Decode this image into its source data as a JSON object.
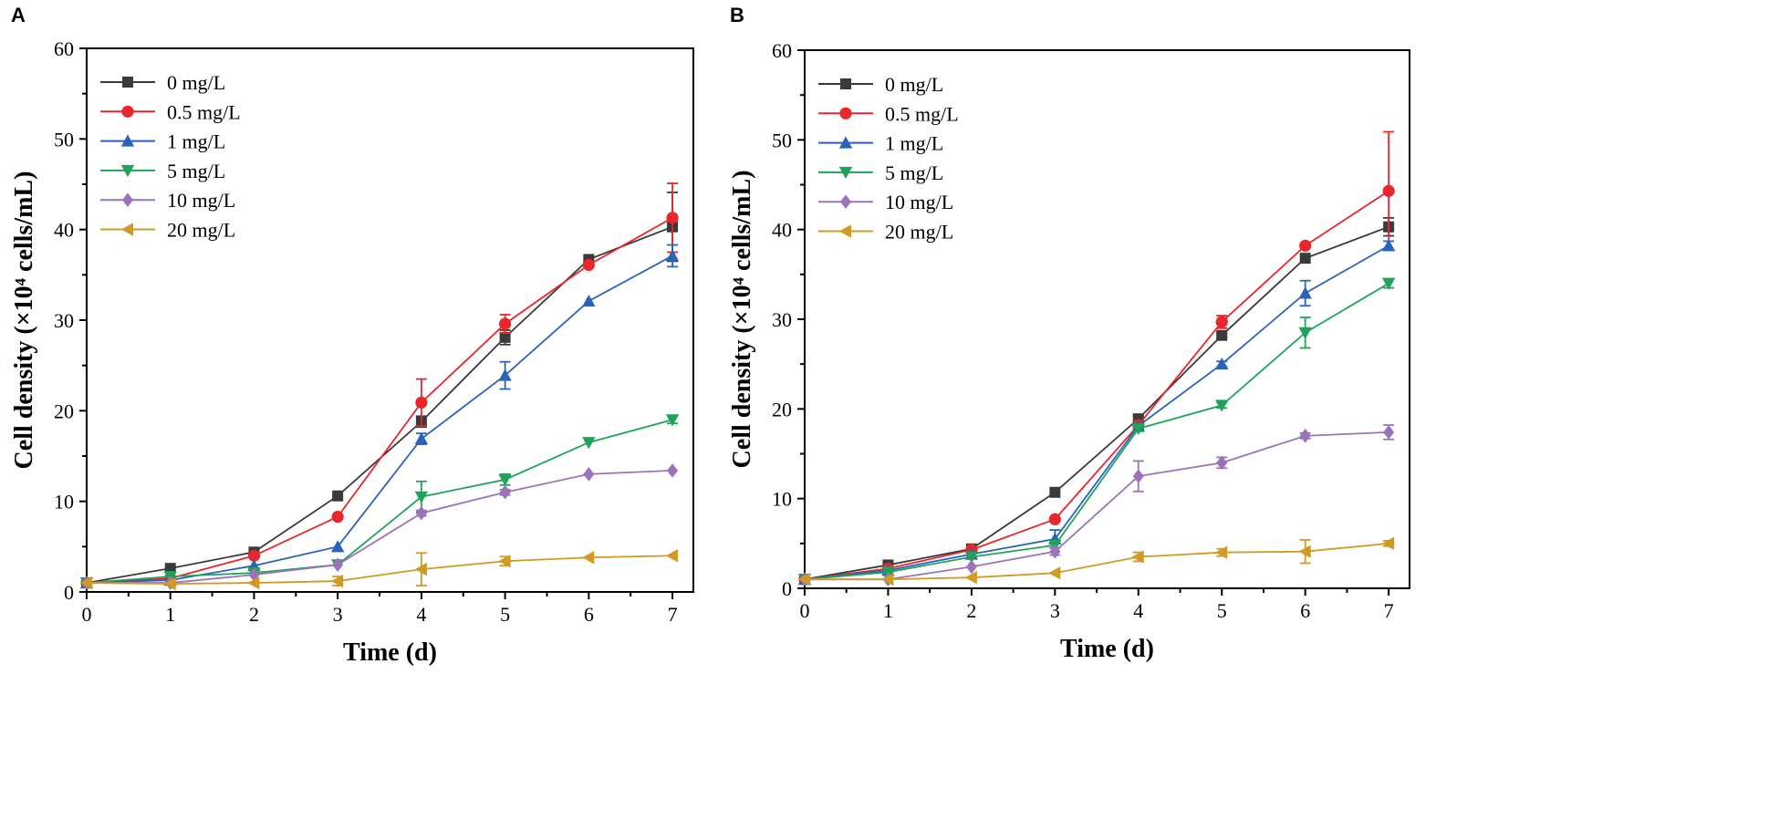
{
  "chart_data": [
    {
      "panel": "A",
      "type": "line",
      "xlabel": "Time (d)",
      "ylabel": "Cell density (×10⁴ cells/mL)",
      "xlim": [
        0,
        7.25
      ],
      "ylim": [
        0,
        60
      ],
      "xticks": [
        0,
        1,
        2,
        3,
        4,
        5,
        6,
        7
      ],
      "yticks": [
        0,
        10,
        20,
        30,
        40,
        50,
        60
      ],
      "legend": "top-left",
      "grid": false,
      "x": [
        0,
        1,
        2,
        3,
        4,
        5,
        6,
        7
      ],
      "series": [
        {
          "name": "0 mg/L",
          "color": "#3a3a3a",
          "marker": "square",
          "values": [
            1,
            2.6,
            4.4,
            10.6,
            18.8,
            28.1,
            36.7,
            40.3
          ],
          "errors": [
            0,
            0,
            0,
            0,
            0.6,
            0.8,
            0,
            3.8
          ]
        },
        {
          "name": "0.5 mg/L",
          "color": "#e8262c",
          "marker": "circle",
          "values": [
            1,
            1.5,
            4.0,
            8.3,
            20.9,
            29.6,
            36.1,
            41.3
          ],
          "errors": [
            0,
            0,
            0,
            0,
            2.6,
            1.0,
            0,
            3.8
          ]
        },
        {
          "name": "1 mg/L",
          "color": "#2a63b8",
          "marker": "triangle-up",
          "values": [
            1,
            1.3,
            2.9,
            5.0,
            16.9,
            23.9,
            32.1,
            37.1
          ],
          "errors": [
            0,
            0,
            0,
            0,
            0.6,
            1.5,
            0,
            1.2
          ]
        },
        {
          "name": "5 mg/L",
          "color": "#1fa35a",
          "marker": "triangle-down",
          "values": [
            1,
            1.7,
            2.1,
            3.0,
            10.5,
            12.4,
            16.5,
            19.0
          ],
          "errors": [
            0,
            0,
            0,
            0,
            1.7,
            0.6,
            0,
            0.4
          ]
        },
        {
          "name": "10 mg/L",
          "color": "#9a73b8",
          "marker": "diamond",
          "values": [
            1,
            1.0,
            1.9,
            3.0,
            8.7,
            11.0,
            13.0,
            13.4
          ],
          "errors": [
            0,
            0,
            0,
            0,
            0.3,
            0.3,
            0,
            0.2
          ]
        },
        {
          "name": "20 mg/L",
          "color": "#d19a24",
          "marker": "triangle-left",
          "values": [
            1,
            0.9,
            1.0,
            1.2,
            2.5,
            3.4,
            3.8,
            4.0
          ],
          "errors": [
            0,
            0,
            0,
            0.5,
            1.8,
            0.5,
            0,
            0.2
          ]
        }
      ]
    },
    {
      "panel": "B",
      "type": "line",
      "xlabel": "Time (d)",
      "ylabel": "Cell density (×10⁴ cells/mL)",
      "xlim": [
        0,
        7.25
      ],
      "ylim": [
        0,
        60
      ],
      "xticks": [
        0,
        1,
        2,
        3,
        4,
        5,
        6,
        7
      ],
      "yticks": [
        0,
        10,
        20,
        30,
        40,
        50,
        60
      ],
      "legend": "top-left",
      "grid": false,
      "x": [
        0,
        1,
        2,
        3,
        4,
        5,
        6,
        7
      ],
      "series": [
        {
          "name": "0 mg/L",
          "color": "#3a3a3a",
          "marker": "square",
          "values": [
            1,
            2.6,
            4.4,
            10.7,
            18.9,
            28.2,
            36.8,
            40.3
          ],
          "errors": [
            0,
            0,
            0,
            0,
            0.3,
            0.3,
            0,
            1.0
          ]
        },
        {
          "name": "0.5 mg/L",
          "color": "#e8262c",
          "marker": "circle",
          "values": [
            1,
            2.2,
            4.3,
            7.7,
            18.2,
            29.7,
            38.2,
            44.3
          ],
          "errors": [
            0,
            0,
            0,
            0,
            0.3,
            0.7,
            0,
            6.6
          ]
        },
        {
          "name": "1 mg/L",
          "color": "#2a63b8",
          "marker": "triangle-up",
          "values": [
            1,
            2.0,
            3.8,
            5.5,
            18.1,
            25.0,
            32.9,
            38.2
          ],
          "errors": [
            0,
            0,
            0,
            1.0,
            0.3,
            0.3,
            1.4,
            0.5
          ]
        },
        {
          "name": "5 mg/L",
          "color": "#1fa35a",
          "marker": "triangle-down",
          "values": [
            1,
            1.8,
            3.5,
            4.8,
            17.8,
            20.4,
            28.5,
            34.0
          ],
          "errors": [
            0,
            0,
            0,
            0,
            0.3,
            0.3,
            1.7,
            0.5
          ]
        },
        {
          "name": "10 mg/L",
          "color": "#9a73b8",
          "marker": "diamond",
          "values": [
            1,
            1.0,
            2.4,
            4.1,
            12.5,
            14.0,
            17.0,
            17.4
          ],
          "errors": [
            0,
            0,
            0,
            0.4,
            1.7,
            0.6,
            0.3,
            0.8
          ]
        },
        {
          "name": "20 mg/L",
          "color": "#d19a24",
          "marker": "triangle-left",
          "values": [
            1,
            1.0,
            1.2,
            1.7,
            3.5,
            4.0,
            4.1,
            5.0
          ],
          "errors": [
            0,
            0,
            0,
            0,
            0.5,
            0.4,
            1.3,
            0.3
          ]
        }
      ]
    }
  ]
}
